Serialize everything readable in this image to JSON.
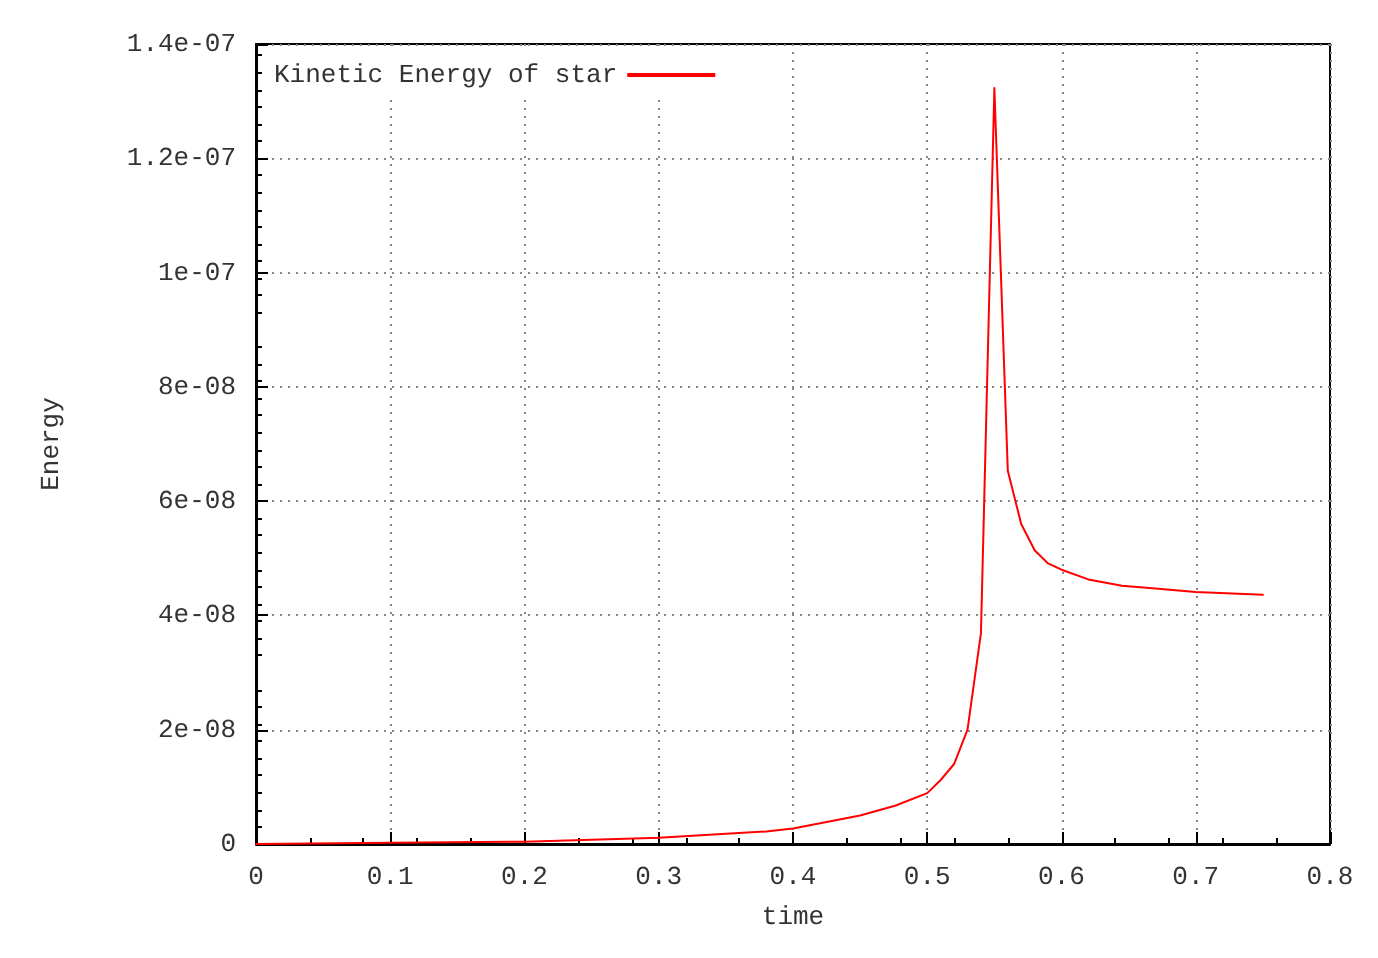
{
  "chart_data": {
    "type": "line",
    "xlabel": "time",
    "ylabel": "Energy",
    "x": [
      0,
      0.1,
      0.2,
      0.3,
      0.38,
      0.4,
      0.45,
      0.476,
      0.5,
      0.51,
      0.52,
      0.53,
      0.54,
      0.55,
      0.56,
      0.57,
      0.58,
      0.59,
      0.6,
      0.62,
      0.645,
      0.67,
      0.7,
      0.75
    ],
    "series": [
      {
        "name": "Kinetic Energy of star",
        "color": "#ff0000",
        "values": [
          0,
          2e-10,
          4e-10,
          1.1e-09,
          2.2e-09,
          2.7e-09,
          5e-09,
          6.7e-09,
          8.9e-09,
          1.12e-08,
          1.4e-08,
          2e-08,
          3.69e-08,
          1.323e-07,
          6.53e-08,
          5.6e-08,
          5.14e-08,
          4.91e-08,
          4.8e-08,
          4.63e-08,
          4.52e-08,
          4.47e-08,
          4.41e-08,
          4.36e-08
        ]
      }
    ],
    "xlim": [
      0,
      0.8
    ],
    "xticks": [
      0,
      0.1,
      0.2,
      0.3,
      0.4,
      0.5,
      0.6,
      0.7,
      0.8
    ],
    "ylim": [
      0,
      1.4e-07
    ],
    "yticks": [
      0,
      {
        "value": 2e-08,
        "label": "2e-08"
      },
      {
        "value": 4e-08,
        "label": "4e-08"
      },
      {
        "value": 6e-08,
        "label": "6e-08"
      },
      {
        "value": 8e-08,
        "label": "8e-08"
      },
      {
        "value": 1e-07,
        "label": "1e-07"
      },
      {
        "value": 1.2e-07,
        "label": "1.2e-07"
      },
      {
        "value": 1.4e-07,
        "label": "1.4e-07"
      }
    ],
    "grid": true,
    "legend": "top left",
    "marker": "none",
    "line_style": "solid"
  }
}
